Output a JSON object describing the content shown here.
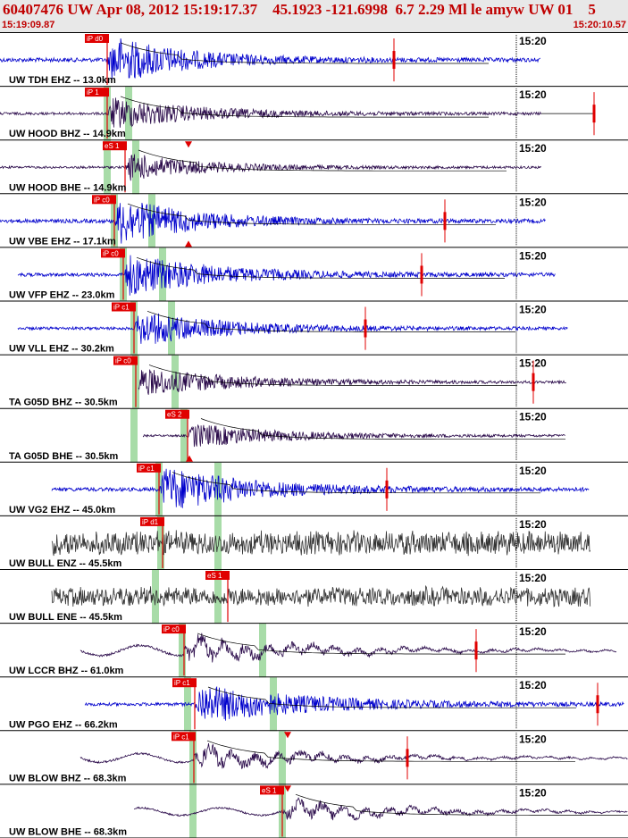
{
  "header": {
    "title": "60407476 UW Apr 08, 2012 15:19:17.37    45.1923 -121.6998  6.7 2.29 Ml le amyw UW 01    5",
    "start_time": "15:19:09.87",
    "end_time": "15:20:10.57"
  },
  "colors": {
    "header_text": "#c00000",
    "header_bg": "#e8e8e8",
    "pick": "#e00000",
    "blue_trace": "#0000cc",
    "dark_trace": "#2a0a4a",
    "gray_trace": "#333333",
    "green_band": "#a8dca8"
  },
  "minute_tick_label": "15:20",
  "traces": [
    {
      "label": "UW TDH EHZ -- 13.0km",
      "pick": "iP d0",
      "color": "blue"
    },
    {
      "label": "UW HOOD BHZ -- 14.9km",
      "pick": "iP 1",
      "color": "dark"
    },
    {
      "label": "UW HOOD BHE -- 14.9km",
      "pick": "eS 1",
      "color": "dark"
    },
    {
      "label": "UW VBE EHZ -- 17.1km",
      "pick": "iP c0",
      "color": "blue"
    },
    {
      "label": "UW VFP EHZ -- 23.0km",
      "pick": "iP c0",
      "color": "blue"
    },
    {
      "label": "UW VLL EHZ -- 30.2km",
      "pick": "iP c1",
      "color": "blue"
    },
    {
      "label": "TA G05D BHZ -- 30.5km",
      "pick": "iP c0",
      "color": "dark"
    },
    {
      "label": "TA G05D BHE -- 30.5km",
      "pick": "eS 2",
      "color": "dark"
    },
    {
      "label": "UW VG2 EHZ -- 45.0km",
      "pick": "iP c1",
      "color": "blue"
    },
    {
      "label": "UW BULL ENZ -- 45.5km",
      "pick": "iP d1",
      "color": "gray"
    },
    {
      "label": "UW BULL ENE -- 45.5km",
      "pick": "eS 1",
      "color": "gray"
    },
    {
      "label": "UW LCCR BHZ -- 61.0km",
      "pick": "iP c0",
      "color": "dark"
    },
    {
      "label": "UW PGO EHZ -- 66.2km",
      "pick": "iP c1",
      "color": "blue"
    },
    {
      "label": "UW BLOW BHZ -- 68.3km",
      "pick": "iP c1",
      "color": "dark"
    },
    {
      "label": "UW BLOW BHE -- 68.3km",
      "pick": "eS 1",
      "color": "dark"
    }
  ]
}
